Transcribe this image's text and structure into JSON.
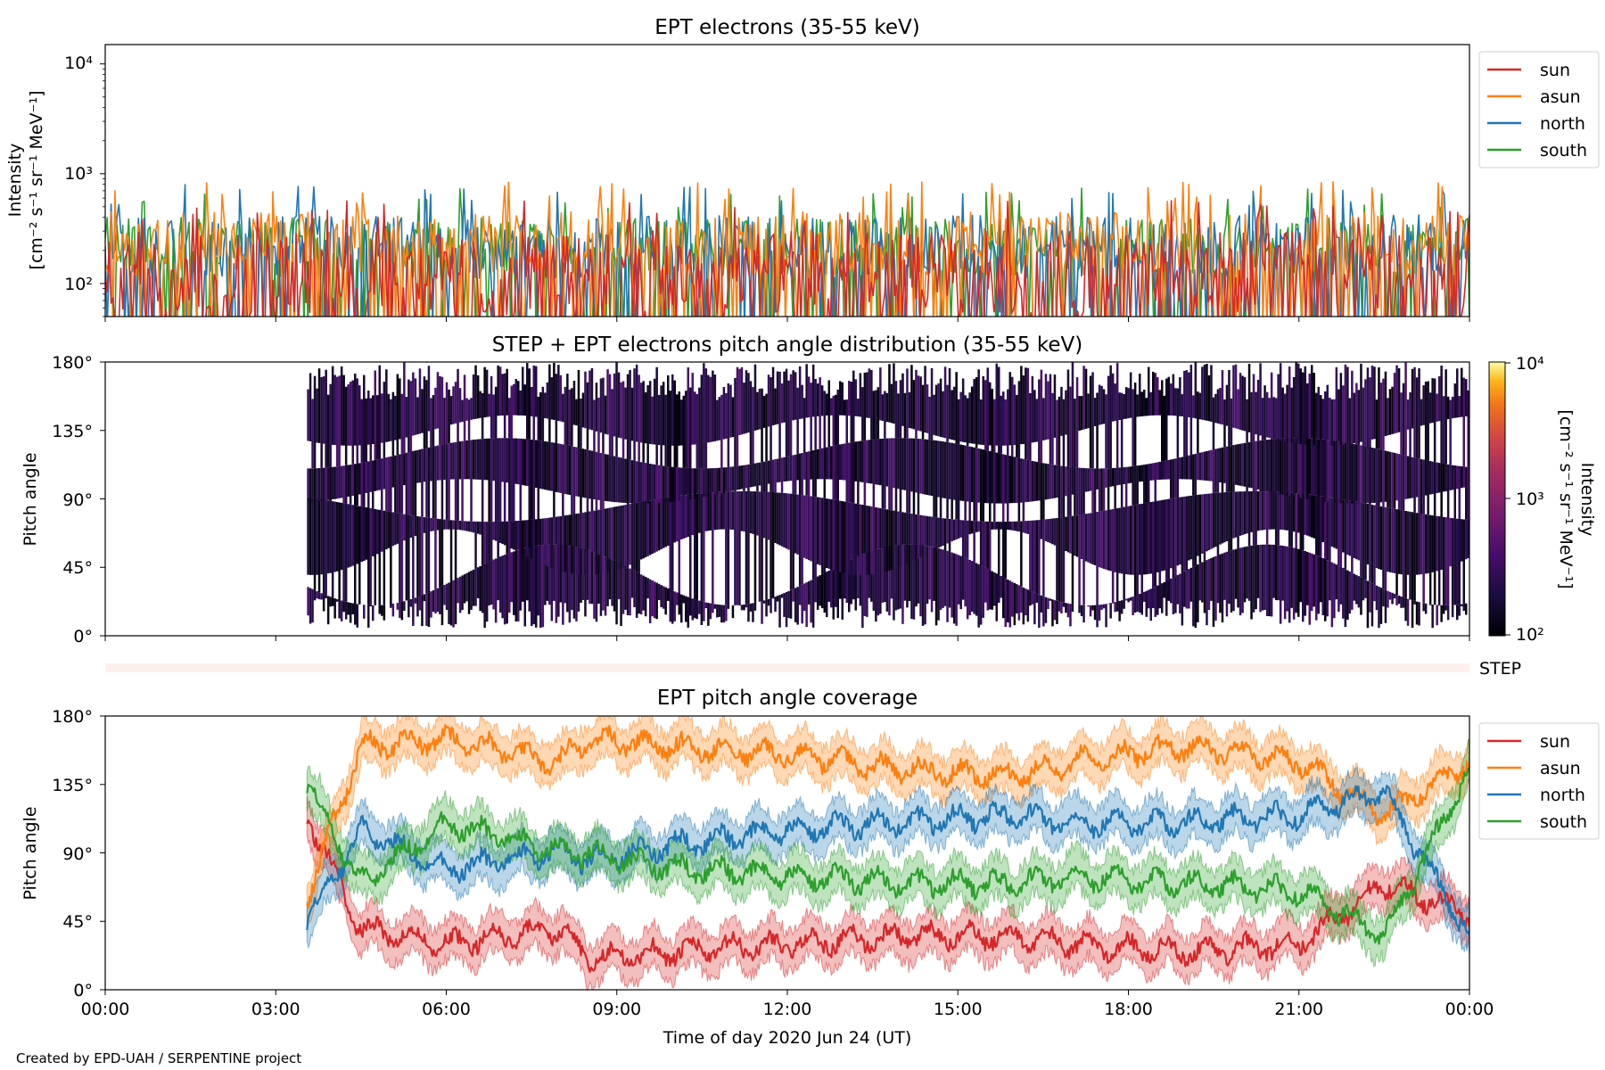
{
  "chart_data": [
    {
      "type": "line",
      "title": "EPT electrons (35-55 keV)",
      "ylabel_line1": "Intensity",
      "ylabel_line2": "[cm⁻² s⁻¹ sr⁻¹ MeV⁻¹]",
      "yscale": "log",
      "ylim": [
        50,
        15000
      ],
      "yticks": [
        "10²",
        "10³",
        "10⁴"
      ],
      "xlim_hours": [
        0,
        24
      ],
      "grid": false,
      "legend_position": "outside-top-right",
      "series": [
        {
          "name": "sun",
          "color": "#d62728",
          "typical_range": [
            50,
            300
          ]
        },
        {
          "name": "asun",
          "color": "#ff7f0e",
          "typical_range": [
            120,
            450
          ]
        },
        {
          "name": "north",
          "color": "#1f77b4",
          "typical_range": [
            110,
            420
          ]
        },
        {
          "name": "south",
          "color": "#2ca02c",
          "typical_range": [
            110,
            400
          ]
        }
      ]
    },
    {
      "type": "heatmap",
      "title": "STEP + EPT electrons pitch angle distribution (35-55 keV)",
      "ylabel": "Pitch angle",
      "ylim": [
        0,
        180
      ],
      "yticks": [
        "0°",
        "45°",
        "90°",
        "135°",
        "180°"
      ],
      "xlim_hours": [
        0,
        24
      ],
      "data_start_hour": 3.55,
      "colorbar": {
        "label_line1": "Intensity",
        "label_line2": "[cm⁻² s⁻¹ sr⁻¹ MeV⁻¹]",
        "scale": "log",
        "range": [
          100,
          10000
        ],
        "ticks": [
          "10²",
          "10³",
          "10⁴"
        ],
        "colormap": "inferno"
      }
    },
    {
      "type": "bar",
      "label": "STEP",
      "xlim_hours": [
        0,
        24
      ],
      "color": "#fdf0ec"
    },
    {
      "type": "line",
      "title": "EPT pitch angle coverage",
      "ylabel": "Pitch angle",
      "ylim": [
        0,
        180
      ],
      "yticks": [
        "0°",
        "45°",
        "90°",
        "135°",
        "180°"
      ],
      "xlabel": "Time of day 2020 Jun 24 (UT)",
      "xticks": [
        "00:00",
        "03:00",
        "06:00",
        "09:00",
        "12:00",
        "15:00",
        "18:00",
        "21:00",
        "00:00"
      ],
      "xlim_hours": [
        0,
        24
      ],
      "data_start_hour": 3.55,
      "legend_position": "outside-top-right",
      "series": [
        {
          "name": "sun",
          "color": "#d62728",
          "x": [
            3.55,
            4.5,
            6,
            8,
            8.5,
            10,
            12,
            14,
            16,
            17,
            19,
            21,
            22.5,
            24
          ],
          "values": [
            115,
            40,
            30,
            40,
            20,
            25,
            30,
            35,
            35,
            30,
            25,
            30,
            70,
            50
          ]
        },
        {
          "name": "asun",
          "color": "#ff7f0e",
          "x": [
            3.55,
            4.5,
            6,
            8,
            8.5,
            10,
            12,
            14,
            16,
            17,
            19,
            21,
            22.5,
            24
          ],
          "values": [
            60,
            160,
            165,
            150,
            165,
            160,
            155,
            145,
            140,
            150,
            160,
            150,
            115,
            150
          ]
        },
        {
          "name": "north",
          "color": "#1f77b4",
          "x": [
            3.55,
            4.5,
            6,
            8,
            8.5,
            10,
            12,
            14,
            16,
            17,
            19,
            21,
            22.5,
            24
          ],
          "values": [
            45,
            105,
            80,
            90,
            85,
            95,
            105,
            110,
            115,
            110,
            110,
            115,
            130,
            35
          ]
        },
        {
          "name": "south",
          "color": "#2ca02c",
          "x": [
            3.55,
            4.5,
            6,
            8,
            8.5,
            10,
            12,
            14,
            16,
            17,
            19,
            21,
            22.5,
            24
          ],
          "values": [
            135,
            70,
            110,
            90,
            90,
            80,
            75,
            70,
            70,
            75,
            70,
            65,
            35,
            145
          ]
        }
      ]
    }
  ],
  "footer": {
    "credit": "Created by EPD-UAH / SERPENTINE project"
  }
}
